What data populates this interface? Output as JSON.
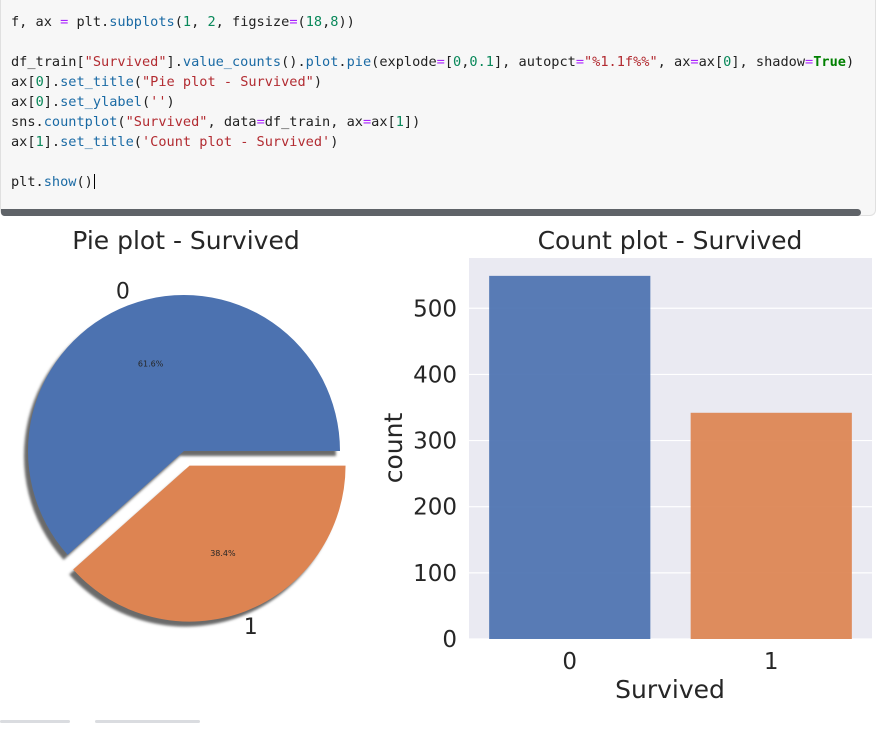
{
  "code_cell": {
    "lines": [
      "f, ax = plt.subplots(1, 2, figsize=(18,8))",
      "",
      "df_train[\"Survived\"].value_counts().plot.pie(explode=[0,0.1], autopct=\"%1.1f%%\", ax=ax[0], shadow=True)",
      "ax[0].set_title(\"Pie plot - Survived\")",
      "ax[0].set_ylabel('')",
      "sns.countplot(\"Survived\", data=df_train, ax=ax[1])",
      "ax[1].set_title('Count plot - Survived')",
      "",
      "plt.show()"
    ]
  },
  "colors": {
    "series_0": "#4c72b0",
    "series_1": "#dd8452",
    "axes_background": "#eaeaf2"
  },
  "chart_data": [
    {
      "type": "pie",
      "title": "Pie plot - Survived",
      "labels": [
        "0",
        "1"
      ],
      "values": [
        61.6,
        38.4
      ],
      "autopct": [
        "61.6%",
        "38.4%"
      ],
      "explode": [
        0,
        0.1
      ],
      "shadow": true
    },
    {
      "type": "bar",
      "title": "Count plot - Survived",
      "categories": [
        "0",
        "1"
      ],
      "values": [
        549,
        342
      ],
      "xlabel": "Survived",
      "ylabel": "count",
      "yticks": [
        "0",
        "100",
        "200",
        "300",
        "400",
        "500"
      ],
      "ylim": [
        0,
        576
      ],
      "grid": true
    }
  ]
}
